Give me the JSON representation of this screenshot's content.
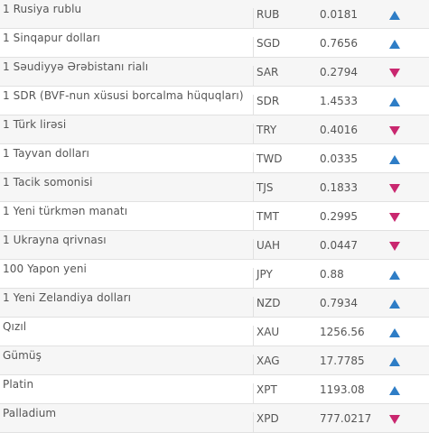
{
  "colors": {
    "up": "#2e7dc6",
    "down": "#c9276f"
  },
  "rates": [
    {
      "name": "1 Rusiya rublu",
      "code": "RUB",
      "value": "0.0181",
      "trend": "up",
      "icon": "up-triangle-icon"
    },
    {
      "name": "1 Sinqapur dolları",
      "code": "SGD",
      "value": "0.7656",
      "trend": "up",
      "icon": "up-triangle-icon"
    },
    {
      "name": "1 Səudiyyə Ərəbistanı rialı",
      "code": "SAR",
      "value": "0.2794",
      "trend": "down",
      "icon": "down-triangle-icon"
    },
    {
      "name": "1 SDR (BVF-nun xüsusi borcalma hüquqları)",
      "code": "SDR",
      "value": "1.4533",
      "trend": "up",
      "icon": "up-triangle-icon"
    },
    {
      "name": "1 Türk lirəsi",
      "code": "TRY",
      "value": "0.4016",
      "trend": "down",
      "icon": "down-triangle-icon"
    },
    {
      "name": "1 Tayvan dolları",
      "code": "TWD",
      "value": "0.0335",
      "trend": "up",
      "icon": "up-triangle-icon"
    },
    {
      "name": "1 Tacik somonisi",
      "code": "TJS",
      "value": "0.1833",
      "trend": "down",
      "icon": "down-triangle-icon"
    },
    {
      "name": "1 Yeni türkmən manatı",
      "code": "TMT",
      "value": "0.2995",
      "trend": "down",
      "icon": "down-triangle-icon"
    },
    {
      "name": "1 Ukrayna qrivnası",
      "code": "UAH",
      "value": "0.0447",
      "trend": "down",
      "icon": "down-triangle-icon"
    },
    {
      "name": "100 Yapon yeni",
      "code": "JPY",
      "value": "0.88",
      "trend": "up",
      "icon": "up-triangle-icon"
    },
    {
      "name": "1 Yeni Zelandiya dolları",
      "code": "NZD",
      "value": "0.7934",
      "trend": "up",
      "icon": "up-triangle-icon"
    },
    {
      "name": "Qızıl",
      "code": "XAU",
      "value": "1256.56",
      "trend": "up",
      "icon": "up-triangle-icon"
    },
    {
      "name": "Gümüş",
      "code": "XAG",
      "value": "17.7785",
      "trend": "up",
      "icon": "up-triangle-icon"
    },
    {
      "name": "Platin",
      "code": "XPT",
      "value": "1193.08",
      "trend": "up",
      "icon": "up-triangle-icon"
    },
    {
      "name": "Palladium",
      "code": "XPD",
      "value": "777.0217",
      "trend": "down",
      "icon": "down-triangle-icon"
    }
  ]
}
